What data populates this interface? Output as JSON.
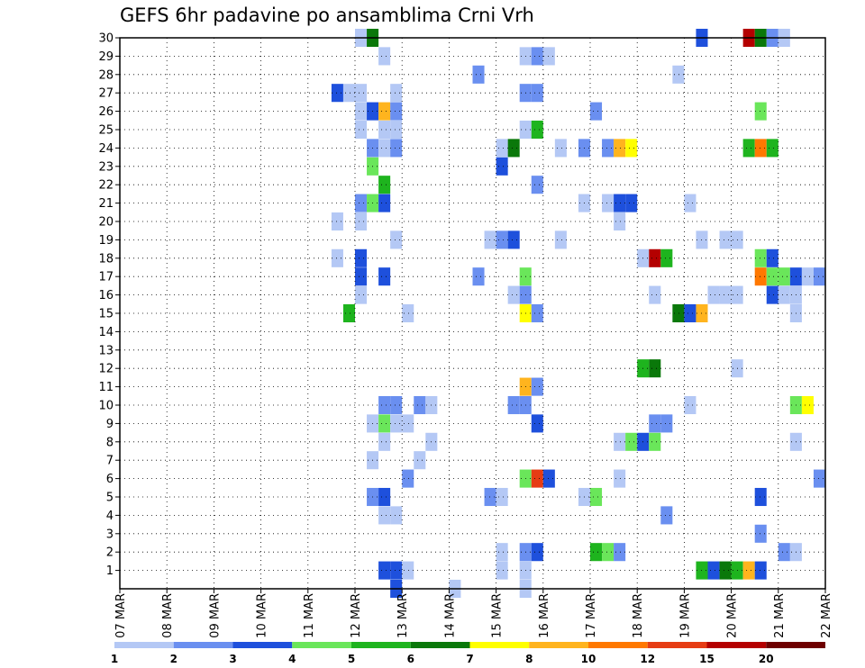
{
  "chart_data": {
    "type": "heatmap",
    "title": "GEFS 6hr padavine po ansamblima Crni Vrh",
    "x_tick_labels": [
      "07 MAR",
      "08 MAR",
      "09 MAR",
      "10 MAR",
      "11 MAR",
      "12 MAR",
      "13 MAR",
      "14 MAR",
      "15 MAR",
      "16 MAR",
      "17 MAR",
      "18 MAR",
      "19 MAR",
      "20 MAR",
      "21 MAR",
      "22 MAR"
    ],
    "y_tick_labels": [
      "1",
      "2",
      "3",
      "4",
      "5",
      "6",
      "7",
      "8",
      "9",
      "10",
      "11",
      "12",
      "13",
      "14",
      "15",
      "16",
      "17",
      "18",
      "19",
      "20",
      "21",
      "22",
      "23",
      "24",
      "25",
      "26",
      "27",
      "28",
      "29",
      "30"
    ],
    "x_unit": "6-hour step from 07 MAR 00Z",
    "xlim": [
      0,
      60
    ],
    "ylim": [
      0,
      30
    ],
    "grid": true,
    "legend": {
      "placement": "bottom",
      "labels": [
        "1",
        "2",
        "3",
        "4",
        "5",
        "6",
        "7",
        "8",
        "10",
        "12",
        "15",
        "20"
      ],
      "colors": [
        "#b4c8f5",
        "#6a8ff0",
        "#1e50dc",
        "#6ae65a",
        "#1eb41e",
        "#0a780a",
        "#ffff00",
        "#ffb41e",
        "#ff7800",
        "#e63c14",
        "#b40000",
        "#6e0000"
      ]
    },
    "cells": [
      {
        "m": 30,
        "x": 20.0,
        "c": 1
      },
      {
        "m": 30,
        "x": 21.0,
        "c": 6
      },
      {
        "m": 30,
        "x": 49.0,
        "c": 3
      },
      {
        "m": 30,
        "x": 53.0,
        "c": 11
      },
      {
        "m": 30,
        "x": 54.0,
        "c": 6
      },
      {
        "m": 30,
        "x": 55.0,
        "c": 2
      },
      {
        "m": 30,
        "x": 56.0,
        "c": 1
      },
      {
        "m": 29,
        "x": 22.0,
        "c": 1
      },
      {
        "m": 29,
        "x": 34.0,
        "c": 1
      },
      {
        "m": 29,
        "x": 35.0,
        "c": 2
      },
      {
        "m": 29,
        "x": 36.0,
        "c": 1
      },
      {
        "m": 28,
        "x": 30.0,
        "c": 2
      },
      {
        "m": 28,
        "x": 47.0,
        "c": 1
      },
      {
        "m": 27,
        "x": 18.0,
        "c": 3
      },
      {
        "m": 27,
        "x": 19.0,
        "c": 1
      },
      {
        "m": 27,
        "x": 20.0,
        "c": 1
      },
      {
        "m": 27,
        "x": 23.0,
        "c": 1
      },
      {
        "m": 27,
        "x": 34.0,
        "c": 2
      },
      {
        "m": 27,
        "x": 35.0,
        "c": 2
      },
      {
        "m": 26,
        "x": 20.0,
        "c": 1
      },
      {
        "m": 26,
        "x": 21.0,
        "c": 3
      },
      {
        "m": 26,
        "x": 22.0,
        "c": 8
      },
      {
        "m": 26,
        "x": 23.0,
        "c": 2
      },
      {
        "m": 26,
        "x": 40.0,
        "c": 2
      },
      {
        "m": 26,
        "x": 54.0,
        "c": 4
      },
      {
        "m": 25,
        "x": 20.0,
        "c": 1
      },
      {
        "m": 25,
        "x": 22.0,
        "c": 1
      },
      {
        "m": 25,
        "x": 23.0,
        "c": 1
      },
      {
        "m": 25,
        "x": 34.0,
        "c": 1
      },
      {
        "m": 25,
        "x": 35.0,
        "c": 5
      },
      {
        "m": 24,
        "x": 21.0,
        "c": 2
      },
      {
        "m": 24,
        "x": 22.0,
        "c": 1
      },
      {
        "m": 24,
        "x": 23.0,
        "c": 2
      },
      {
        "m": 24,
        "x": 32.0,
        "c": 1
      },
      {
        "m": 24,
        "x": 33.0,
        "c": 6
      },
      {
        "m": 24,
        "x": 37.0,
        "c": 1
      },
      {
        "m": 24,
        "x": 39.0,
        "c": 2
      },
      {
        "m": 24,
        "x": 41.0,
        "c": 2
      },
      {
        "m": 24,
        "x": 42.0,
        "c": 8
      },
      {
        "m": 24,
        "x": 43.0,
        "c": 7
      },
      {
        "m": 24,
        "x": 53.0,
        "c": 5
      },
      {
        "m": 24,
        "x": 54.0,
        "c": 9
      },
      {
        "m": 24,
        "x": 55.0,
        "c": 5
      },
      {
        "m": 23,
        "x": 21.0,
        "c": 4
      },
      {
        "m": 23,
        "x": 32.0,
        "c": 3
      },
      {
        "m": 22,
        "x": 22.0,
        "c": 5
      },
      {
        "m": 22,
        "x": 35.0,
        "c": 2
      },
      {
        "m": 21,
        "x": 20.0,
        "c": 2
      },
      {
        "m": 21,
        "x": 21.0,
        "c": 4
      },
      {
        "m": 21,
        "x": 22.0,
        "c": 3
      },
      {
        "m": 21,
        "x": 39.0,
        "c": 1
      },
      {
        "m": 21,
        "x": 41.0,
        "c": 1
      },
      {
        "m": 21,
        "x": 42.0,
        "c": 3
      },
      {
        "m": 21,
        "x": 43.0,
        "c": 3
      },
      {
        "m": 21,
        "x": 48.0,
        "c": 1
      },
      {
        "m": 20,
        "x": 18.0,
        "c": 1
      },
      {
        "m": 20,
        "x": 20.0,
        "c": 1
      },
      {
        "m": 20,
        "x": 42.0,
        "c": 1
      },
      {
        "m": 19,
        "x": 23.0,
        "c": 1
      },
      {
        "m": 19,
        "x": 31.0,
        "c": 1
      },
      {
        "m": 19,
        "x": 32.0,
        "c": 2
      },
      {
        "m": 19,
        "x": 33.0,
        "c": 3
      },
      {
        "m": 19,
        "x": 37.0,
        "c": 1
      },
      {
        "m": 19,
        "x": 49.0,
        "c": 1
      },
      {
        "m": 19,
        "x": 51.0,
        "c": 1
      },
      {
        "m": 19,
        "x": 52.0,
        "c": 1
      },
      {
        "m": 18,
        "x": 18.0,
        "c": 1
      },
      {
        "m": 18,
        "x": 20.0,
        "c": 3
      },
      {
        "m": 18,
        "x": 44.0,
        "c": 1
      },
      {
        "m": 18,
        "x": 45.0,
        "c": 11
      },
      {
        "m": 18,
        "x": 46.0,
        "c": 5
      },
      {
        "m": 18,
        "x": 54.0,
        "c": 4
      },
      {
        "m": 18,
        "x": 55.0,
        "c": 3
      },
      {
        "m": 17,
        "x": 20.0,
        "c": 3
      },
      {
        "m": 17,
        "x": 22.0,
        "c": 3
      },
      {
        "m": 17,
        "x": 30.0,
        "c": 2
      },
      {
        "m": 17,
        "x": 34.0,
        "c": 4
      },
      {
        "m": 17,
        "x": 54.0,
        "c": 9
      },
      {
        "m": 17,
        "x": 55.0,
        "c": 4
      },
      {
        "m": 17,
        "x": 56.0,
        "c": 4
      },
      {
        "m": 17,
        "x": 57.0,
        "c": 3
      },
      {
        "m": 17,
        "x": 58.0,
        "c": 1
      },
      {
        "m": 17,
        "x": 59.0,
        "c": 2
      },
      {
        "m": 16,
        "x": 20.0,
        "c": 1
      },
      {
        "m": 16,
        "x": 33.0,
        "c": 1
      },
      {
        "m": 16,
        "x": 34.0,
        "c": 2
      },
      {
        "m": 16,
        "x": 45.0,
        "c": 1
      },
      {
        "m": 16,
        "x": 50.0,
        "c": 1
      },
      {
        "m": 16,
        "x": 51.0,
        "c": 1
      },
      {
        "m": 16,
        "x": 52.0,
        "c": 1
      },
      {
        "m": 16,
        "x": 55.0,
        "c": 3
      },
      {
        "m": 16,
        "x": 56.0,
        "c": 1
      },
      {
        "m": 16,
        "x": 57.0,
        "c": 1
      },
      {
        "m": 15,
        "x": 19.0,
        "c": 5
      },
      {
        "m": 15,
        "x": 24.0,
        "c": 1
      },
      {
        "m": 15,
        "x": 34.0,
        "c": 7
      },
      {
        "m": 15,
        "x": 35.0,
        "c": 2
      },
      {
        "m": 15,
        "x": 47.0,
        "c": 6
      },
      {
        "m": 15,
        "x": 48.0,
        "c": 3
      },
      {
        "m": 15,
        "x": 49.0,
        "c": 8
      },
      {
        "m": 15,
        "x": 57.0,
        "c": 1
      },
      {
        "m": 12,
        "x": 44.0,
        "c": 5
      },
      {
        "m": 12,
        "x": 45.0,
        "c": 6
      },
      {
        "m": 12,
        "x": 52.0,
        "c": 1
      },
      {
        "m": 11,
        "x": 34.0,
        "c": 8
      },
      {
        "m": 11,
        "x": 35.0,
        "c": 2
      },
      {
        "m": 10,
        "x": 22.0,
        "c": 2
      },
      {
        "m": 10,
        "x": 23.0,
        "c": 2
      },
      {
        "m": 10,
        "x": 25.0,
        "c": 2
      },
      {
        "m": 10,
        "x": 26.0,
        "c": 1
      },
      {
        "m": 10,
        "x": 33.0,
        "c": 2
      },
      {
        "m": 10,
        "x": 34.0,
        "c": 2
      },
      {
        "m": 10,
        "x": 48.0,
        "c": 1
      },
      {
        "m": 10,
        "x": 57.0,
        "c": 4
      },
      {
        "m": 10,
        "x": 58.0,
        "c": 7
      },
      {
        "m": 9,
        "x": 21.0,
        "c": 1
      },
      {
        "m": 9,
        "x": 22.0,
        "c": 4
      },
      {
        "m": 9,
        "x": 23.0,
        "c": 1
      },
      {
        "m": 9,
        "x": 24.0,
        "c": 1
      },
      {
        "m": 9,
        "x": 35.0,
        "c": 3
      },
      {
        "m": 9,
        "x": 45.0,
        "c": 2
      },
      {
        "m": 9,
        "x": 46.0,
        "c": 2
      },
      {
        "m": 8,
        "x": 22.0,
        "c": 1
      },
      {
        "m": 8,
        "x": 26.0,
        "c": 1
      },
      {
        "m": 8,
        "x": 42.0,
        "c": 1
      },
      {
        "m": 8,
        "x": 43.0,
        "c": 4
      },
      {
        "m": 8,
        "x": 44.0,
        "c": 3
      },
      {
        "m": 8,
        "x": 45.0,
        "c": 4
      },
      {
        "m": 8,
        "x": 57.0,
        "c": 1
      },
      {
        "m": 7,
        "x": 21.0,
        "c": 1
      },
      {
        "m": 7,
        "x": 25.0,
        "c": 1
      },
      {
        "m": 6,
        "x": 24.0,
        "c": 2
      },
      {
        "m": 6,
        "x": 34.0,
        "c": 4
      },
      {
        "m": 6,
        "x": 35.0,
        "c": 10
      },
      {
        "m": 6,
        "x": 36.0,
        "c": 3
      },
      {
        "m": 6,
        "x": 42.0,
        "c": 1
      },
      {
        "m": 6,
        "x": 59.0,
        "c": 2
      },
      {
        "m": 5,
        "x": 21.0,
        "c": 2
      },
      {
        "m": 5,
        "x": 22.0,
        "c": 3
      },
      {
        "m": 5,
        "x": 31.0,
        "c": 2
      },
      {
        "m": 5,
        "x": 32.0,
        "c": 1
      },
      {
        "m": 5,
        "x": 39.0,
        "c": 1
      },
      {
        "m": 5,
        "x": 40.0,
        "c": 4
      },
      {
        "m": 5,
        "x": 54.0,
        "c": 3
      },
      {
        "m": 4,
        "x": 22.0,
        "c": 1
      },
      {
        "m": 4,
        "x": 23.0,
        "c": 1
      },
      {
        "m": 4,
        "x": 46.0,
        "c": 2
      },
      {
        "m": 3,
        "x": 54.0,
        "c": 2
      },
      {
        "m": 2,
        "x": 32.0,
        "c": 1
      },
      {
        "m": 2,
        "x": 34.0,
        "c": 2
      },
      {
        "m": 2,
        "x": 35.0,
        "c": 3
      },
      {
        "m": 2,
        "x": 40.0,
        "c": 5
      },
      {
        "m": 2,
        "x": 41.0,
        "c": 4
      },
      {
        "m": 2,
        "x": 42.0,
        "c": 2
      },
      {
        "m": 2,
        "x": 56.0,
        "c": 2
      },
      {
        "m": 2,
        "x": 57.0,
        "c": 1
      },
      {
        "m": 1,
        "x": 22.0,
        "c": 3
      },
      {
        "m": 1,
        "x": 23.0,
        "c": 3
      },
      {
        "m": 1,
        "x": 24.0,
        "c": 1
      },
      {
        "m": 1,
        "x": 32.0,
        "c": 1
      },
      {
        "m": 1,
        "x": 34.0,
        "c": 1
      },
      {
        "m": 1,
        "x": 49.0,
        "c": 5
      },
      {
        "m": 1,
        "x": 50.0,
        "c": 3
      },
      {
        "m": 1,
        "x": 51.0,
        "c": 6
      },
      {
        "m": 1,
        "x": 52.0,
        "c": 5
      },
      {
        "m": 1,
        "x": 53.0,
        "c": 8
      },
      {
        "m": 1,
        "x": 54.0,
        "c": 3
      },
      {
        "m": 0,
        "x": 23.0,
        "c": 3
      },
      {
        "m": 0,
        "x": 28.0,
        "c": 1
      },
      {
        "m": 0,
        "x": 34.0,
        "c": 1
      }
    ]
  }
}
